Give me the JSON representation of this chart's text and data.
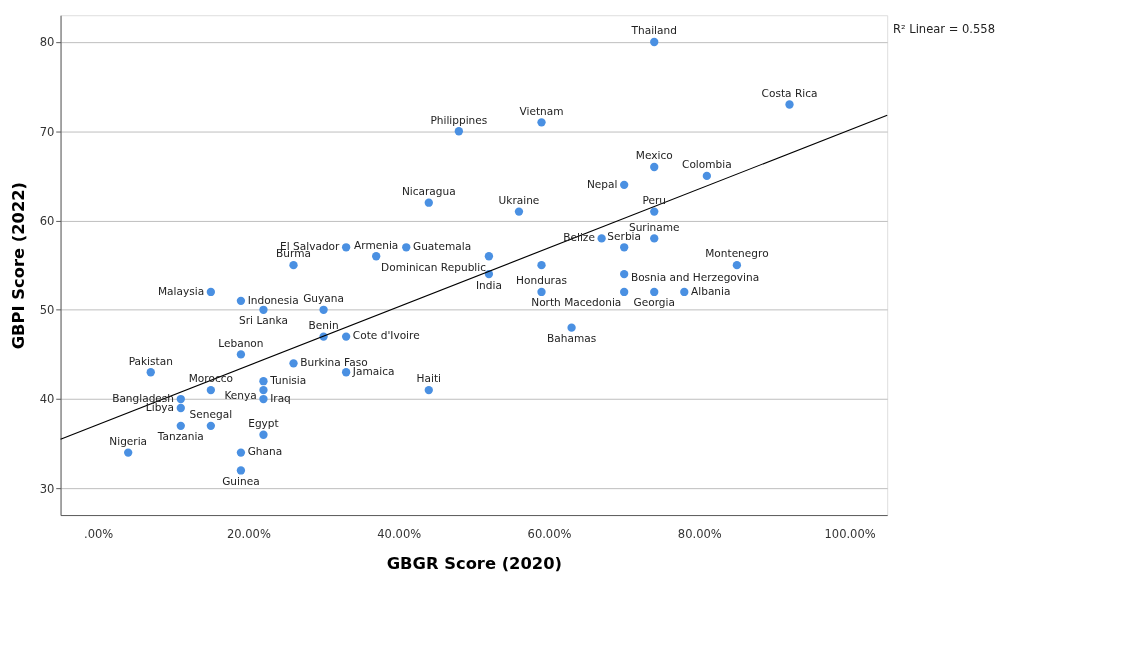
{
  "chart_data": {
    "type": "scatter",
    "xlabel": "GBGR Score (2020)",
    "ylabel": "GBPI Score (2022)",
    "xlim": [
      -5,
      105
    ],
    "ylim": [
      27,
      83
    ],
    "xticks": [
      {
        "value": 0,
        "label": ".00%"
      },
      {
        "value": 20,
        "label": "20.00%"
      },
      {
        "value": 40,
        "label": "40.00%"
      },
      {
        "value": 60,
        "label": "60.00%"
      },
      {
        "value": 80,
        "label": "80.00%"
      },
      {
        "value": 100,
        "label": "100.00%"
      }
    ],
    "yticks": [
      30,
      40,
      50,
      60,
      70,
      80
    ],
    "grid": "y",
    "series": [
      {
        "marker": "circle",
        "color": "#4a90e2",
        "x": [
          74,
          92,
          59,
          48,
          74,
          81,
          70,
          44,
          56,
          74,
          67,
          74,
          70,
          33,
          41,
          37,
          52,
          52,
          26,
          70,
          85,
          19,
          15,
          22,
          30,
          74,
          70,
          78,
          59,
          63,
          30,
          33,
          19,
          26,
          7,
          33,
          22,
          15,
          22,
          22,
          44,
          11,
          11,
          15,
          11,
          22,
          4,
          19,
          19,
          59
        ],
        "values": [
          80,
          73,
          71,
          70,
          66,
          65,
          64,
          62,
          61,
          61,
          58,
          58,
          57,
          57,
          57,
          56,
          56,
          54,
          55,
          54,
          55,
          51,
          52,
          50,
          50,
          52,
          52,
          52,
          52,
          48,
          47,
          47,
          45,
          44,
          43,
          43,
          42,
          41,
          41,
          40,
          41,
          40,
          39,
          37,
          37,
          36,
          34,
          34,
          32,
          55
        ]
      },
      {
        "type": "line",
        "color": "#000000",
        "x": [
          -5,
          105
        ],
        "values": [
          35.5,
          71.8
        ]
      }
    ],
    "annotations": [
      {
        "text": "Thailand",
        "x": 74,
        "y": 80
      },
      {
        "text": "Costa Rica",
        "x": 92,
        "y": 73
      },
      {
        "text": "Vietnam",
        "x": 59,
        "y": 71
      },
      {
        "text": "Philippines",
        "x": 48,
        "y": 70
      },
      {
        "text": "Mexico",
        "x": 74,
        "y": 66
      },
      {
        "text": "Colombia",
        "x": 81,
        "y": 65
      },
      {
        "text": "Nepal",
        "x": 70,
        "y": 64
      },
      {
        "text": "Nicaragua",
        "x": 44,
        "y": 62
      },
      {
        "text": "Ukraine",
        "x": 56,
        "y": 61
      },
      {
        "text": "Peru",
        "x": 74,
        "y": 61
      },
      {
        "text": "Belize",
        "x": 67,
        "y": 58
      },
      {
        "text": "Suriname",
        "x": 74,
        "y": 58
      },
      {
        "text": "Serbia",
        "x": 70,
        "y": 57
      },
      {
        "text": "El Salvador",
        "x": 33,
        "y": 57
      },
      {
        "text": "Guatemala",
        "x": 41,
        "y": 57
      },
      {
        "text": "Armenia",
        "x": 37,
        "y": 56
      },
      {
        "text": "Dominican Republic",
        "x": 52,
        "y": 56
      },
      {
        "text": "India",
        "x": 52,
        "y": 54
      },
      {
        "text": "Burma",
        "x": 26,
        "y": 55
      },
      {
        "text": "Bosnia and Herzegovina",
        "x": 70,
        "y": 54
      },
      {
        "text": "Montenegro",
        "x": 85,
        "y": 55
      },
      {
        "text": "Indonesia",
        "x": 19,
        "y": 51
      },
      {
        "text": "Malaysia",
        "x": 15,
        "y": 52
      },
      {
        "text": "Sri Lanka",
        "x": 22,
        "y": 50
      },
      {
        "text": "Guyana",
        "x": 30,
        "y": 50
      },
      {
        "text": "Georgia",
        "x": 74,
        "y": 52
      },
      {
        "text": "North Macedonia",
        "x": 70,
        "y": 52
      },
      {
        "text": "Albania",
        "x": 78,
        "y": 52
      },
      {
        "text": "Honduras",
        "x": 59,
        "y": 52
      },
      {
        "text": "Bahamas",
        "x": 63,
        "y": 48
      },
      {
        "text": "Benin",
        "x": 30,
        "y": 47
      },
      {
        "text": "Cote d'Ivoire",
        "x": 33,
        "y": 47
      },
      {
        "text": "Lebanon",
        "x": 19,
        "y": 45
      },
      {
        "text": "Burkina Faso",
        "x": 26,
        "y": 44
      },
      {
        "text": "Pakistan",
        "x": 7,
        "y": 43
      },
      {
        "text": "Jamaica",
        "x": 33,
        "y": 43
      },
      {
        "text": "Tunisia",
        "x": 22,
        "y": 42
      },
      {
        "text": "Morocco",
        "x": 15,
        "y": 41
      },
      {
        "text": "Kenya",
        "x": 22,
        "y": 41
      },
      {
        "text": "Iraq",
        "x": 22,
        "y": 40
      },
      {
        "text": "Haiti",
        "x": 44,
        "y": 41
      },
      {
        "text": "Bangladesh",
        "x": 11,
        "y": 40
      },
      {
        "text": "Libya",
        "x": 11,
        "y": 39
      },
      {
        "text": "Senegal",
        "x": 15,
        "y": 37
      },
      {
        "text": "Tanzania",
        "x": 11,
        "y": 37
      },
      {
        "text": "Egypt",
        "x": 22,
        "y": 36
      },
      {
        "text": "Nigeria",
        "x": 4,
        "y": 34
      },
      {
        "text": "Ghana",
        "x": 19,
        "y": 34
      },
      {
        "text": "Guinea",
        "x": 19,
        "y": 32
      },
      "R² Linear = 0.558"
    ]
  }
}
